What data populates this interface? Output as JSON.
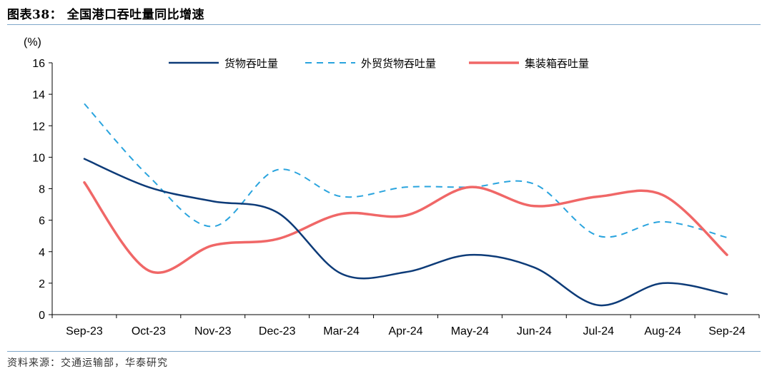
{
  "figure": {
    "title": "图表38：  全国港口吞吐量同比增速",
    "source": "资料来源：交通运输部，华泰研究"
  },
  "chart_data": {
    "type": "line",
    "ylabel": "(%)",
    "ylim": [
      0,
      16
    ],
    "yticks": [
      0,
      2,
      4,
      6,
      8,
      10,
      12,
      14,
      16
    ],
    "grid": false,
    "legend_position": "top",
    "categories": [
      "Sep-23",
      "Oct-23",
      "Nov-23",
      "Dec-23",
      "Mar-24",
      "Apr-24",
      "May-24",
      "Jun-24",
      "Jul-24",
      "Aug-24",
      "Sep-24"
    ],
    "series": [
      {
        "name": "货物吞吐量",
        "color": "#0d3b78",
        "style": "solid",
        "values": [
          9.9,
          8.1,
          7.2,
          6.5,
          2.6,
          2.7,
          3.8,
          3.0,
          0.6,
          2.0,
          1.3
        ]
      },
      {
        "name": "外贸货物吞吐量",
        "color": "#2aa4de",
        "style": "dashed",
        "values": [
          13.4,
          8.8,
          5.6,
          9.2,
          7.5,
          8.1,
          8.1,
          8.3,
          5.0,
          5.9,
          4.9
        ]
      },
      {
        "name": "集装箱吞吐量",
        "color": "#f06767",
        "style": "solid",
        "values": [
          8.4,
          2.8,
          4.4,
          4.8,
          6.4,
          6.3,
          8.1,
          6.9,
          7.5,
          7.6,
          3.8
        ]
      }
    ]
  }
}
